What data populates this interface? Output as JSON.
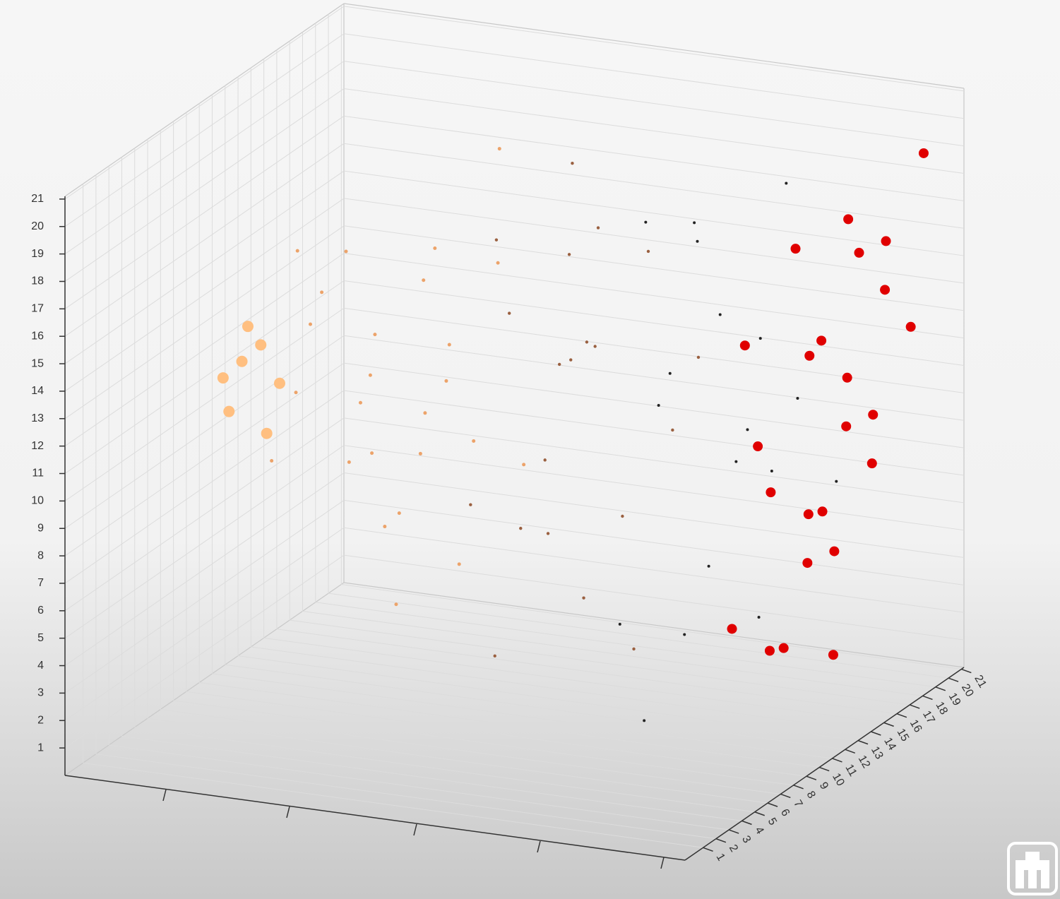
{
  "chart_data": {
    "type": "scatter3d",
    "xlim": [
      0.2,
      5.2
    ],
    "ylim": [
      -0.4,
      21.2
    ],
    "zlim": [
      0,
      21.1
    ],
    "yticks": [
      1,
      2,
      3,
      4,
      5,
      6,
      7,
      8,
      9,
      10,
      11,
      12,
      13,
      14,
      15,
      16,
      17,
      18,
      19,
      20,
      21
    ],
    "zticks": [
      1,
      2,
      3,
      4,
      5,
      6,
      7,
      8,
      9,
      10,
      11,
      12,
      13,
      14,
      15,
      16,
      17,
      18,
      19,
      20,
      21
    ],
    "grid": true,
    "series": [
      {
        "color": "#ffbf80",
        "size": 8,
        "x": [
          0.6,
          0.7,
          0.8,
          0.7,
          0.9,
          0.8,
          0.9
        ],
        "y": [
          8,
          8.5,
          9,
          7.5,
          9.5,
          8,
          8.5
        ],
        "z": [
          12,
          12.5,
          13,
          11,
          11.5,
          14,
          10
        ]
      },
      {
        "color": "#eca36a",
        "size": 2.5,
        "x": [
          1.2,
          1.2,
          1.2,
          1.2,
          1.2,
          1.5,
          1.5,
          1.5,
          1.5,
          1.5,
          1.8,
          1.8,
          1.8,
          1.8,
          1.8,
          2.1,
          2.1,
          2.1,
          2.1,
          2.1,
          2.4,
          2.4,
          2.4,
          2.4,
          2.4
        ],
        "y": [
          6,
          9,
          12,
          8,
          14,
          7,
          10,
          13,
          5,
          15,
          6,
          9,
          12,
          8,
          14,
          7,
          10,
          13,
          5,
          15,
          6,
          9,
          12,
          8,
          14
        ],
        "z": [
          10,
          14,
          8,
          17,
          12,
          16,
          11,
          6,
          13,
          9,
          18,
          7,
          15,
          10,
          12,
          5,
          17,
          9,
          14,
          19,
          11,
          6,
          16,
          13,
          8
        ]
      },
      {
        "color": "#9a6040",
        "size": 2.2,
        "x": [
          2.7,
          2.7,
          2.7,
          2.7,
          2.7,
          3.0,
          3.0,
          3.0,
          3.0,
          3.0,
          3.3,
          3.3,
          3.3,
          3.3,
          3.3,
          3.6,
          3.6,
          3.6,
          3.6,
          3.6
        ],
        "y": [
          7,
          10,
          13,
          9,
          16,
          6,
          11,
          14,
          8,
          12,
          7,
          10,
          15,
          9,
          13,
          6,
          11,
          14,
          8,
          16
        ],
        "z": [
          9,
          15,
          6,
          18,
          12,
          4,
          13,
          17,
          8,
          20,
          11,
          5,
          16,
          14,
          7,
          19,
          3,
          10,
          15,
          12
        ]
      },
      {
        "color": "#222222",
        "size": 2,
        "x": [
          3.8,
          3.8,
          3.8,
          3.8,
          3.8,
          3.8,
          4.1,
          4.1,
          4.1,
          4.1,
          4.1,
          4.1,
          4.4,
          4.4,
          4.4,
          4.4,
          4.4,
          4.4
        ],
        "y": [
          8,
          11,
          14,
          17,
          10,
          13,
          9,
          12,
          15,
          18,
          7,
          16,
          10,
          13,
          16,
          19,
          8,
          14
        ],
        "z": [
          5,
          12,
          17,
          8,
          19,
          3,
          14,
          6,
          10,
          18,
          2,
          13,
          16,
          4,
          11,
          7,
          20,
          9
        ]
      },
      {
        "color": "#e00000",
        "size": 7,
        "x": [
          4.6,
          4.6,
          4.6,
          4.6,
          4.6,
          4.6,
          4.6,
          4.6,
          4.8,
          4.8,
          4.8,
          4.8,
          4.8,
          4.8,
          4.8,
          4.8,
          5.0,
          5.0,
          5.0,
          5.0,
          5.0,
          5.0,
          5.0,
          5.0
        ],
        "y": [
          9,
          12,
          15,
          18,
          10,
          13,
          16,
          11,
          10,
          13,
          16,
          19,
          12,
          15,
          18,
          14,
          11,
          14,
          17,
          20,
          13,
          16,
          19,
          15
        ],
        "z": [
          5,
          9,
          13,
          17,
          15,
          3,
          7,
          11,
          4,
          8,
          12,
          16,
          18,
          6,
          10,
          14,
          7,
          11,
          15,
          19,
          3,
          9,
          13,
          17
        ]
      }
    ]
  }
}
